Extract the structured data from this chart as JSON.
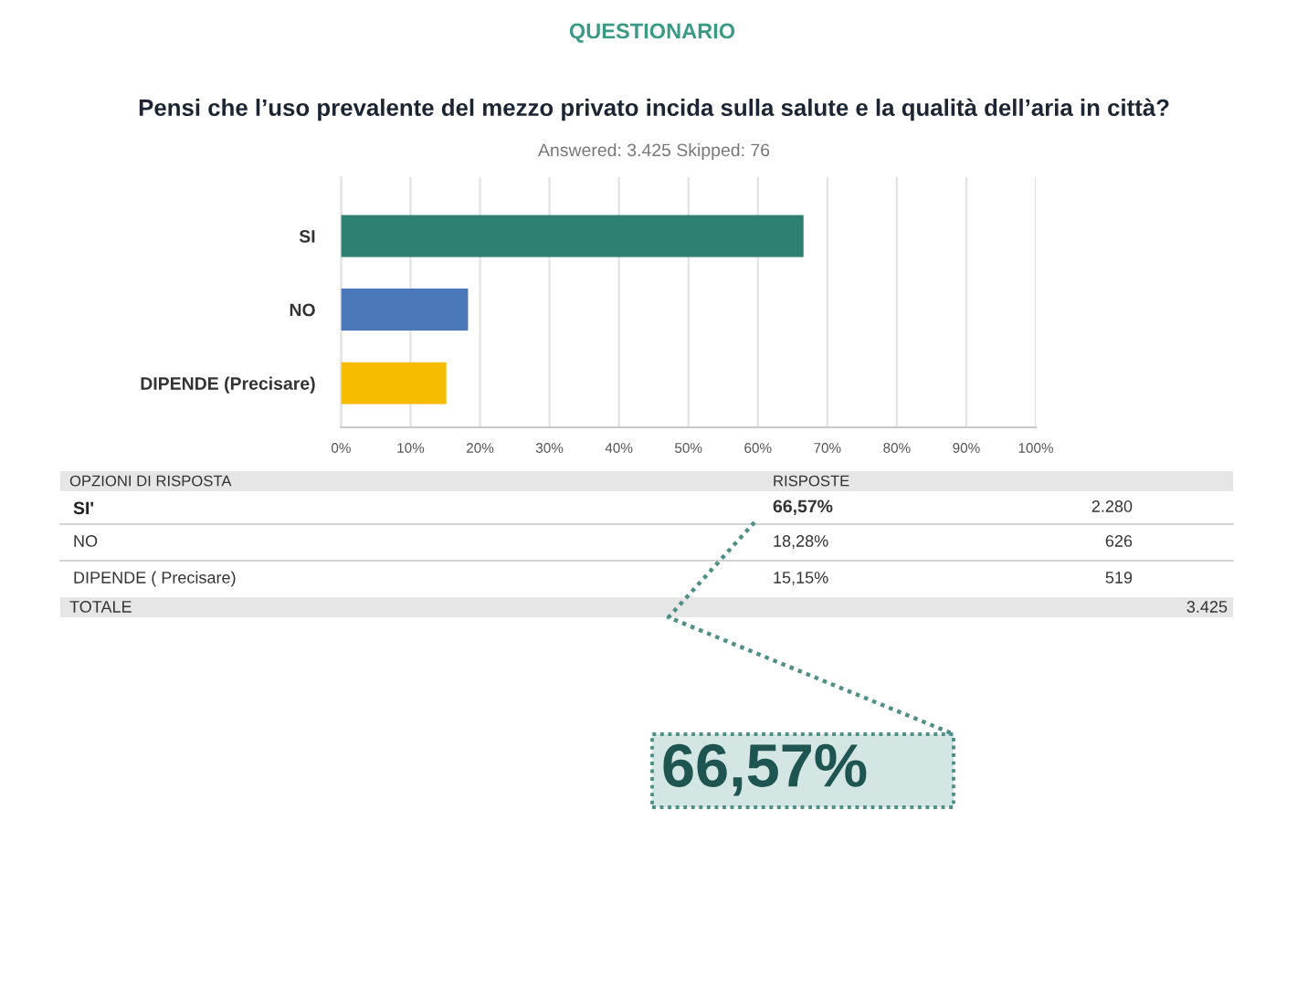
{
  "chart_data": {
    "type": "bar",
    "orientation": "horizontal",
    "title": "QUESTIONARIO",
    "subtitle": "Pensi che l’uso prevalente del mezzo privato incida sulla salute e la qualità dell’aria in città?",
    "categories": [
      "SI",
      "NO",
      "DIPENDE (Precisare)"
    ],
    "values": [
      66.57,
      18.28,
      15.15
    ],
    "colors": [
      "#2e8073",
      "#4a78b8",
      "#f6bc00"
    ],
    "xlim": [
      0,
      100
    ],
    "xticks": [
      {
        "value": 0,
        "label": "0%"
      },
      {
        "value": 10,
        "label": "10%"
      },
      {
        "value": 20,
        "label": "20%"
      },
      {
        "value": 30,
        "label": "30%"
      },
      {
        "value": 40,
        "label": "40%"
      },
      {
        "value": 50,
        "label": "50%"
      },
      {
        "value": 60,
        "label": "60%"
      },
      {
        "value": 70,
        "label": "70%"
      },
      {
        "value": 80,
        "label": "80%"
      },
      {
        "value": 90,
        "label": "90%"
      },
      {
        "value": 100,
        "label": "100%"
      }
    ],
    "grid": "x",
    "annotations": [
      "Answered: 3.425 Skipped: 76",
      "OPZIONI DI RISPOSTA",
      "RISPOSTE",
      "SI'",
      "NO",
      "DIPENDE ( Precisare)",
      "66,57%",
      "18,28%",
      "15,15%",
      "2.280",
      "626",
      "519",
      "TOTALE",
      "3.425",
      "66,57%"
    ]
  }
}
